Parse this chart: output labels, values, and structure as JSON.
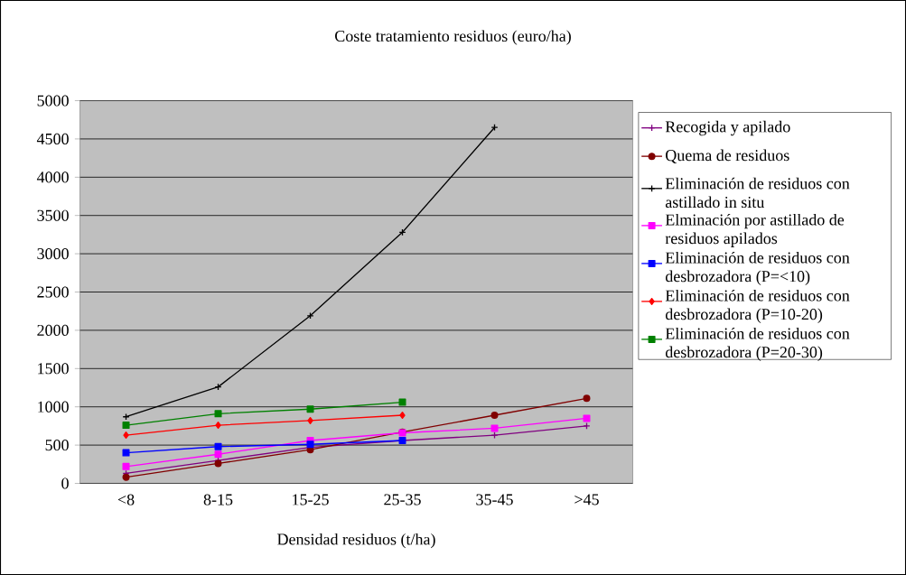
{
  "chart_data": {
    "type": "line",
    "title": "Coste tratamiento residuos (euro/ha)",
    "xlabel": "Densidad residuos (t/ha)",
    "categories": [
      "<8",
      "8-15",
      "15-25",
      "25-35",
      "35-45",
      ">45"
    ],
    "ylim": [
      0,
      5000
    ],
    "yticks": [
      0,
      500,
      1000,
      1500,
      2000,
      2500,
      3000,
      3500,
      4000,
      4500,
      5000
    ],
    "grid": "y",
    "legend": "right",
    "series": [
      {
        "name": "Recogida y apilado",
        "color": "#800080",
        "marker": "cross",
        "values": [
          130,
          300,
          470,
          560,
          630,
          750
        ]
      },
      {
        "name": "Quema de residuos",
        "color": "#800000",
        "marker": "circle",
        "values": [
          80,
          260,
          440,
          670,
          890,
          1110
        ]
      },
      {
        "name": "Eliminación de residuos con astillado in situ",
        "color": "#000000",
        "marker": "cross",
        "values": [
          870,
          1260,
          2190,
          3280,
          4650,
          null
        ]
      },
      {
        "name": "Elminación por astillado de residuos apilados",
        "color": "#ff00ff",
        "marker": "square",
        "values": [
          220,
          380,
          560,
          660,
          720,
          850
        ]
      },
      {
        "name": "Eliminación de residuos con desbrozadora (P=<10)",
        "color": "#0000ff",
        "marker": "square",
        "values": [
          400,
          480,
          510,
          560,
          null,
          null
        ]
      },
      {
        "name": "Eliminación de residuos con desbrozadora (P=10-20)",
        "color": "#ff0000",
        "marker": "diamond",
        "values": [
          630,
          760,
          820,
          890,
          null,
          null
        ]
      },
      {
        "name": "Eliminación de residuos con desbrozadora (P=20-30)",
        "color": "#008000",
        "marker": "square",
        "values": [
          760,
          910,
          970,
          1060,
          null,
          null
        ]
      }
    ]
  }
}
